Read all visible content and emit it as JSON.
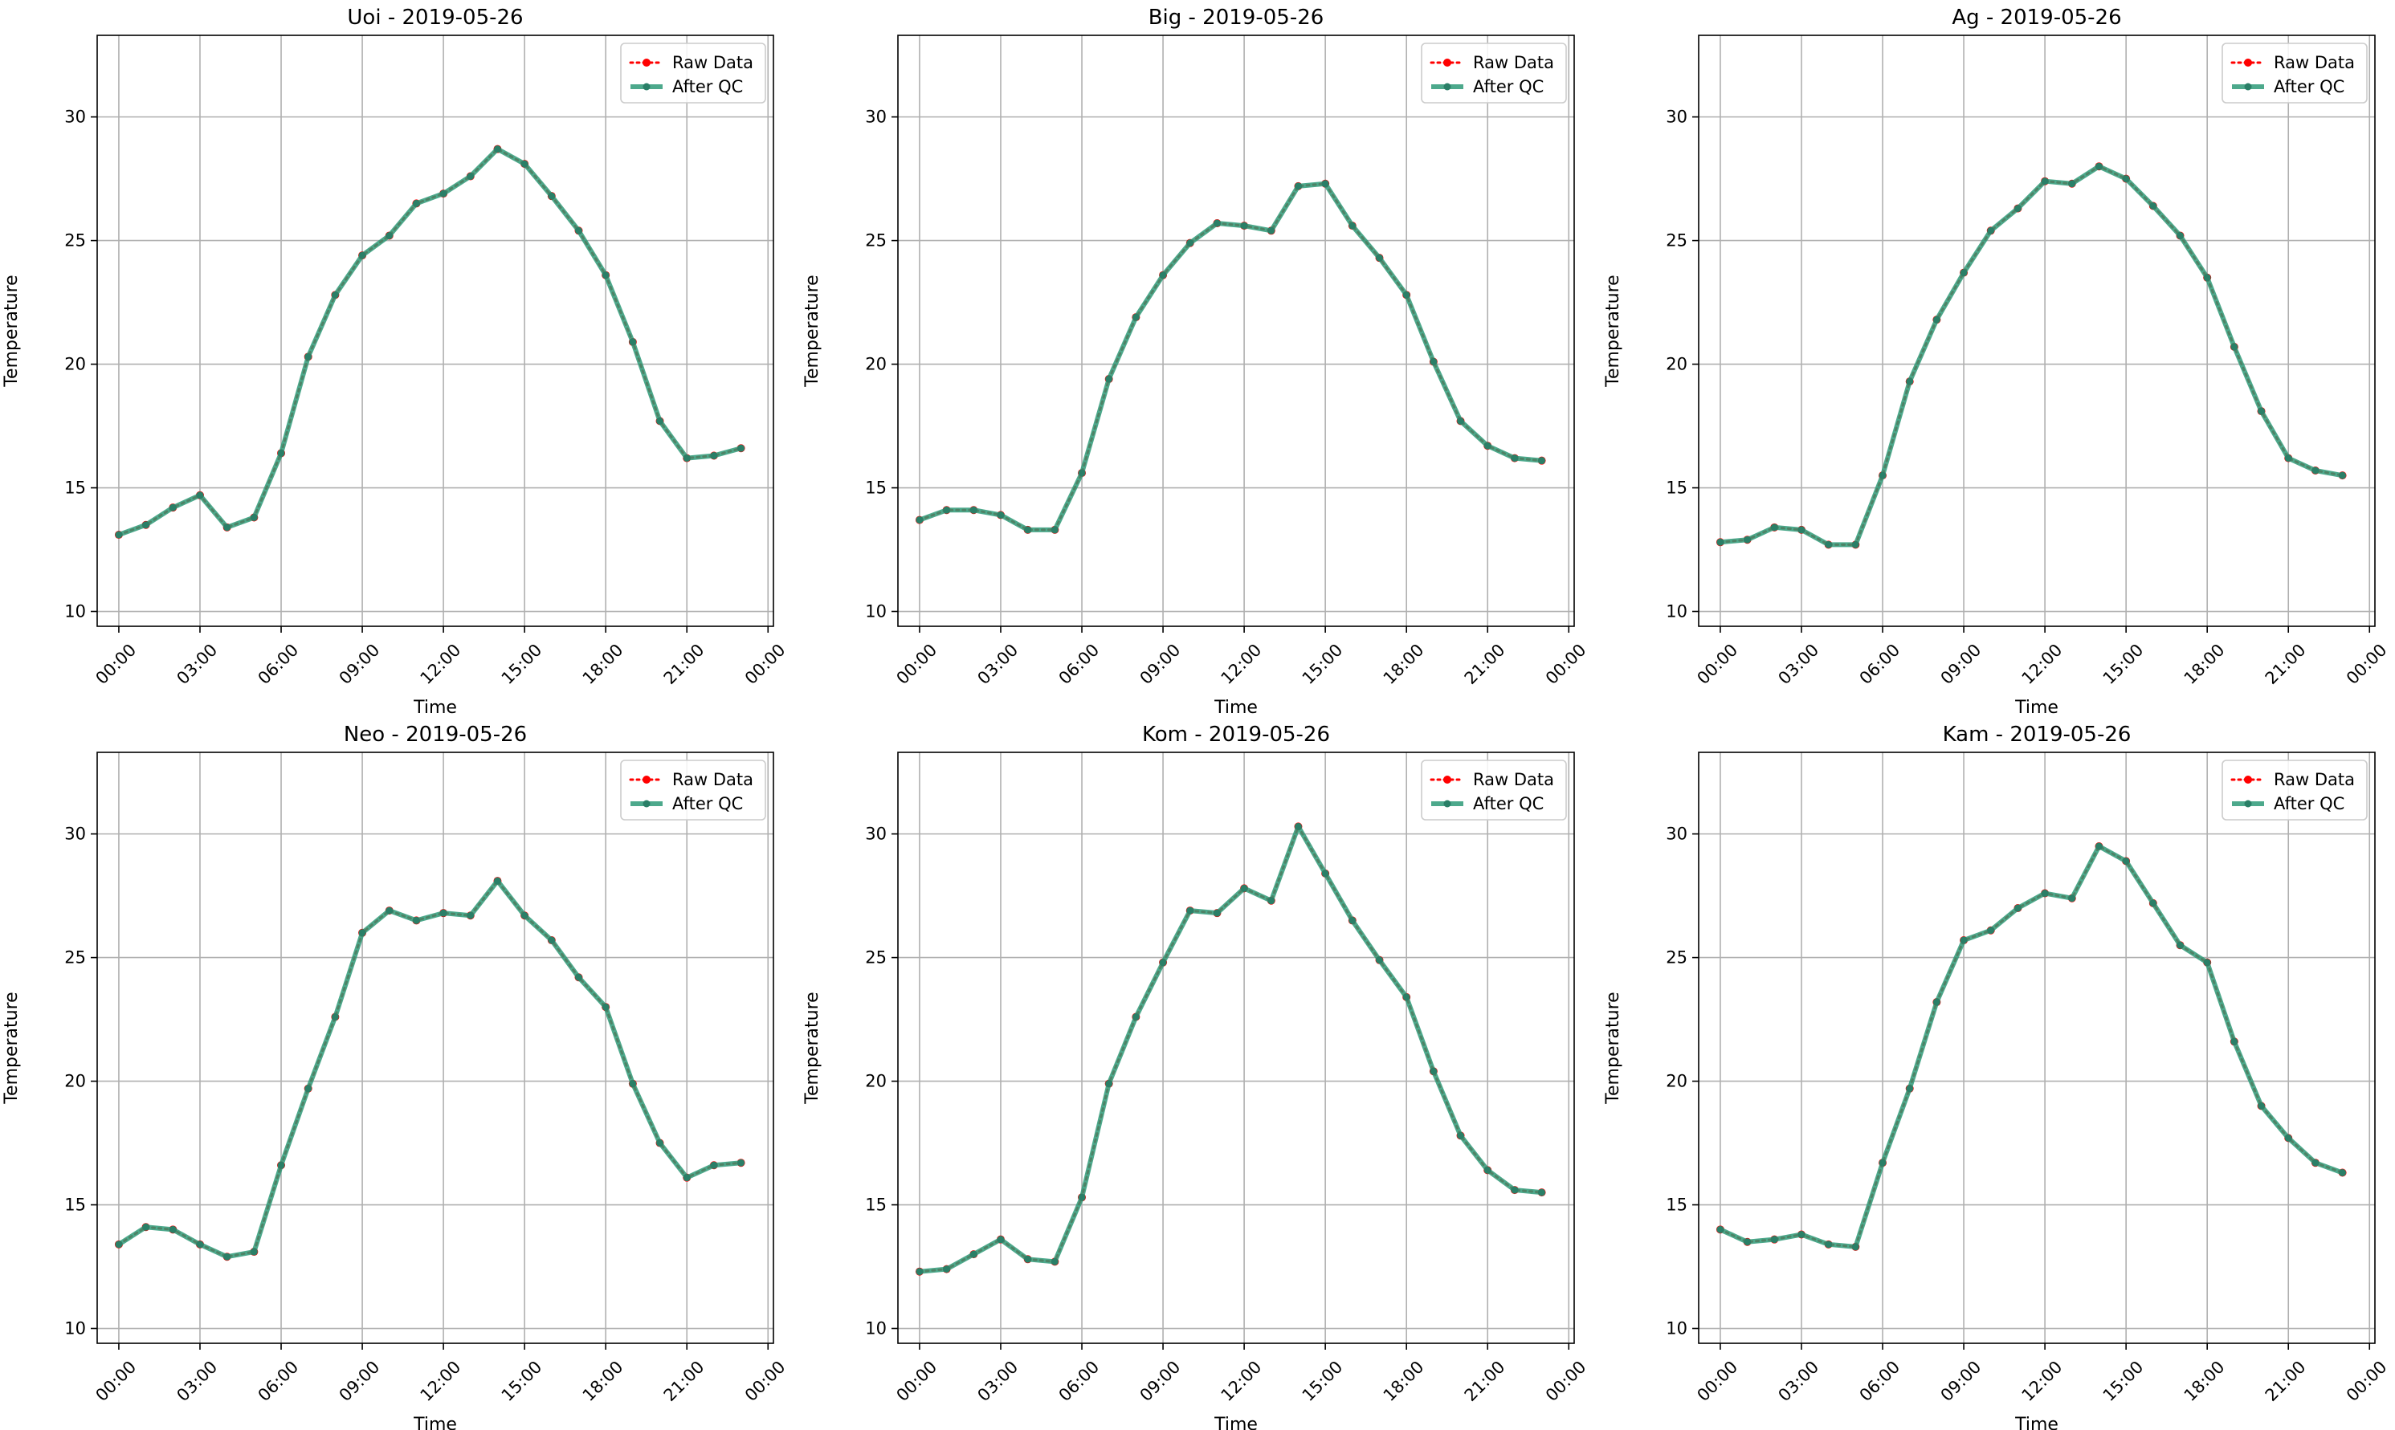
{
  "chart_data": [
    {
      "type": "line",
      "title": "Uoi - 2019-05-26",
      "xlabel": "Time",
      "ylabel": "Temperature",
      "ylim": [
        9.4,
        33.3
      ],
      "yticks": [
        10,
        15,
        20,
        25,
        30
      ],
      "xlim": [
        -0.8,
        24.2
      ],
      "xticks": [
        "00:00",
        "03:00",
        "06:00",
        "09:00",
        "12:00",
        "15:00",
        "18:00",
        "21:00",
        "00:00"
      ],
      "x": [
        "00:00",
        "01:00",
        "02:00",
        "03:00",
        "04:00",
        "05:00",
        "06:00",
        "07:00",
        "08:00",
        "09:00",
        "10:00",
        "11:00",
        "12:00",
        "13:00",
        "14:00",
        "15:00",
        "16:00",
        "17:00",
        "18:00",
        "19:00",
        "20:00",
        "21:00",
        "22:00",
        "23:00"
      ],
      "legend": "top-right",
      "grid": true,
      "series": [
        {
          "name": "Raw Data",
          "color": "#ff0000",
          "values": [
            13.1,
            13.5,
            14.2,
            14.7,
            13.4,
            13.8,
            16.4,
            20.3,
            22.8,
            24.4,
            25.2,
            26.5,
            26.9,
            27.6,
            28.7,
            28.1,
            26.8,
            25.4,
            23.6,
            20.9,
            17.7,
            16.2,
            16.3,
            16.6
          ]
        },
        {
          "name": "After QC",
          "color": "#2e9a78",
          "values": [
            13.1,
            13.5,
            14.2,
            14.7,
            13.4,
            13.8,
            16.4,
            20.3,
            22.8,
            24.4,
            25.2,
            26.5,
            26.9,
            27.6,
            28.7,
            28.1,
            26.8,
            25.4,
            23.6,
            20.9,
            17.7,
            16.2,
            16.3,
            16.6
          ]
        }
      ]
    },
    {
      "type": "line",
      "title": "Big - 2019-05-26",
      "xlabel": "Time",
      "ylabel": "Temperature",
      "ylim": [
        9.4,
        33.3
      ],
      "yticks": [
        10,
        15,
        20,
        25,
        30
      ],
      "xlim": [
        -0.8,
        24.2
      ],
      "xticks": [
        "00:00",
        "03:00",
        "06:00",
        "09:00",
        "12:00",
        "15:00",
        "18:00",
        "21:00",
        "00:00"
      ],
      "x": [
        "00:00",
        "01:00",
        "02:00",
        "03:00",
        "04:00",
        "05:00",
        "06:00",
        "07:00",
        "08:00",
        "09:00",
        "10:00",
        "11:00",
        "12:00",
        "13:00",
        "14:00",
        "15:00",
        "16:00",
        "17:00",
        "18:00",
        "19:00",
        "20:00",
        "21:00",
        "22:00",
        "23:00"
      ],
      "legend": "top-right",
      "grid": true,
      "series": [
        {
          "name": "Raw Data",
          "color": "#ff0000",
          "values": [
            13.7,
            14.1,
            14.1,
            13.9,
            13.3,
            13.3,
            15.6,
            19.4,
            21.9,
            23.6,
            24.9,
            25.7,
            25.6,
            25.4,
            27.2,
            27.3,
            25.6,
            24.3,
            22.8,
            20.1,
            17.7,
            16.7,
            16.2,
            16.1
          ]
        },
        {
          "name": "After QC",
          "color": "#2e9a78",
          "values": [
            13.7,
            14.1,
            14.1,
            13.9,
            13.3,
            13.3,
            15.6,
            19.4,
            21.9,
            23.6,
            24.9,
            25.7,
            25.6,
            25.4,
            27.2,
            27.3,
            25.6,
            24.3,
            22.8,
            20.1,
            17.7,
            16.7,
            16.2,
            16.1
          ]
        }
      ]
    },
    {
      "type": "line",
      "title": "Ag - 2019-05-26",
      "xlabel": "Time",
      "ylabel": "Temperature",
      "ylim": [
        9.4,
        33.3
      ],
      "yticks": [
        10,
        15,
        20,
        25,
        30
      ],
      "xlim": [
        -0.8,
        24.2
      ],
      "xticks": [
        "00:00",
        "03:00",
        "06:00",
        "09:00",
        "12:00",
        "15:00",
        "18:00",
        "21:00",
        "00:00"
      ],
      "x": [
        "00:00",
        "01:00",
        "02:00",
        "03:00",
        "04:00",
        "05:00",
        "06:00",
        "07:00",
        "08:00",
        "09:00",
        "10:00",
        "11:00",
        "12:00",
        "13:00",
        "14:00",
        "15:00",
        "16:00",
        "17:00",
        "18:00",
        "19:00",
        "20:00",
        "21:00",
        "22:00",
        "23:00"
      ],
      "legend": "top-right",
      "grid": true,
      "series": [
        {
          "name": "Raw Data",
          "color": "#ff0000",
          "values": [
            12.8,
            12.9,
            13.4,
            13.3,
            12.7,
            12.7,
            15.5,
            19.3,
            21.8,
            23.7,
            25.4,
            26.3,
            27.4,
            27.3,
            28.0,
            27.5,
            26.4,
            25.2,
            23.5,
            20.7,
            18.1,
            16.2,
            15.7,
            15.5
          ]
        },
        {
          "name": "After QC",
          "color": "#2e9a78",
          "values": [
            12.8,
            12.9,
            13.4,
            13.3,
            12.7,
            12.7,
            15.5,
            19.3,
            21.8,
            23.7,
            25.4,
            26.3,
            27.4,
            27.3,
            28.0,
            27.5,
            26.4,
            25.2,
            23.5,
            20.7,
            18.1,
            16.2,
            15.7,
            15.5
          ]
        }
      ]
    },
    {
      "type": "line",
      "title": "Neo - 2019-05-26",
      "xlabel": "Time",
      "ylabel": "Temperature",
      "ylim": [
        9.4,
        33.3
      ],
      "yticks": [
        10,
        15,
        20,
        25,
        30
      ],
      "xlim": [
        -0.8,
        24.2
      ],
      "xticks": [
        "00:00",
        "03:00",
        "06:00",
        "09:00",
        "12:00",
        "15:00",
        "18:00",
        "21:00",
        "00:00"
      ],
      "x": [
        "00:00",
        "01:00",
        "02:00",
        "03:00",
        "04:00",
        "05:00",
        "06:00",
        "07:00",
        "08:00",
        "09:00",
        "10:00",
        "11:00",
        "12:00",
        "13:00",
        "14:00",
        "15:00",
        "16:00",
        "17:00",
        "18:00",
        "19:00",
        "20:00",
        "21:00",
        "22:00",
        "23:00"
      ],
      "legend": "top-right",
      "grid": true,
      "series": [
        {
          "name": "Raw Data",
          "color": "#ff0000",
          "values": [
            13.4,
            14.1,
            14.0,
            13.4,
            12.9,
            13.1,
            16.6,
            19.7,
            22.6,
            26.0,
            26.9,
            26.5,
            26.8,
            26.7,
            28.1,
            26.7,
            25.7,
            24.2,
            23.0,
            19.9,
            17.5,
            16.1,
            16.6,
            16.7
          ]
        },
        {
          "name": "After QC",
          "color": "#2e9a78",
          "values": [
            13.4,
            14.1,
            14.0,
            13.4,
            12.9,
            13.1,
            16.6,
            19.7,
            22.6,
            26.0,
            26.9,
            26.5,
            26.8,
            26.7,
            28.1,
            26.7,
            25.7,
            24.2,
            23.0,
            19.9,
            17.5,
            16.1,
            16.6,
            16.7
          ]
        }
      ]
    },
    {
      "type": "line",
      "title": "Kom - 2019-05-26",
      "xlabel": "Time",
      "ylabel": "Temperature",
      "ylim": [
        9.4,
        33.3
      ],
      "yticks": [
        10,
        15,
        20,
        25,
        30
      ],
      "xlim": [
        -0.8,
        24.2
      ],
      "xticks": [
        "00:00",
        "03:00",
        "06:00",
        "09:00",
        "12:00",
        "15:00",
        "18:00",
        "21:00",
        "00:00"
      ],
      "x": [
        "00:00",
        "01:00",
        "02:00",
        "03:00",
        "04:00",
        "05:00",
        "06:00",
        "07:00",
        "08:00",
        "09:00",
        "10:00",
        "11:00",
        "12:00",
        "13:00",
        "14:00",
        "15:00",
        "16:00",
        "17:00",
        "18:00",
        "19:00",
        "20:00",
        "21:00",
        "22:00",
        "23:00"
      ],
      "legend": "top-right",
      "grid": true,
      "series": [
        {
          "name": "Raw Data",
          "color": "#ff0000",
          "values": [
            12.3,
            12.4,
            13.0,
            13.6,
            12.8,
            12.7,
            15.3,
            19.9,
            22.6,
            24.8,
            26.9,
            26.8,
            27.8,
            27.3,
            30.3,
            28.4,
            26.5,
            24.9,
            23.4,
            20.4,
            17.8,
            16.4,
            15.6,
            15.5
          ]
        },
        {
          "name": "After QC",
          "color": "#2e9a78",
          "values": [
            12.3,
            12.4,
            13.0,
            13.6,
            12.8,
            12.7,
            15.3,
            19.9,
            22.6,
            24.8,
            26.9,
            26.8,
            27.8,
            27.3,
            30.3,
            28.4,
            26.5,
            24.9,
            23.4,
            20.4,
            17.8,
            16.4,
            15.6,
            15.5
          ]
        }
      ]
    },
    {
      "type": "line",
      "title": "Kam - 2019-05-26",
      "xlabel": "Time",
      "ylabel": "Temperature",
      "ylim": [
        9.4,
        33.3
      ],
      "yticks": [
        10,
        15,
        20,
        25,
        30
      ],
      "xlim": [
        -0.8,
        24.2
      ],
      "xticks": [
        "00:00",
        "03:00",
        "06:00",
        "09:00",
        "12:00",
        "15:00",
        "18:00",
        "21:00",
        "00:00"
      ],
      "x": [
        "00:00",
        "01:00",
        "02:00",
        "03:00",
        "04:00",
        "05:00",
        "06:00",
        "07:00",
        "08:00",
        "09:00",
        "10:00",
        "11:00",
        "12:00",
        "13:00",
        "14:00",
        "15:00",
        "16:00",
        "17:00",
        "18:00",
        "19:00",
        "20:00",
        "21:00",
        "22:00",
        "23:00"
      ],
      "legend": "top-right",
      "grid": true,
      "series": [
        {
          "name": "Raw Data",
          "color": "#ff0000",
          "values": [
            14.0,
            13.5,
            13.6,
            13.8,
            13.4,
            13.3,
            16.7,
            19.7,
            23.2,
            25.7,
            26.1,
            27.0,
            27.6,
            27.4,
            29.5,
            28.9,
            27.2,
            25.5,
            24.8,
            21.6,
            19.0,
            17.7,
            16.7,
            16.3
          ]
        },
        {
          "name": "After QC",
          "color": "#2e9a78",
          "values": [
            14.0,
            13.5,
            13.6,
            13.8,
            13.4,
            13.3,
            16.7,
            19.7,
            23.2,
            25.7,
            26.1,
            27.0,
            27.6,
            27.4,
            29.5,
            28.9,
            27.2,
            25.5,
            24.8,
            21.6,
            19.0,
            17.7,
            16.7,
            16.3
          ]
        }
      ]
    }
  ]
}
